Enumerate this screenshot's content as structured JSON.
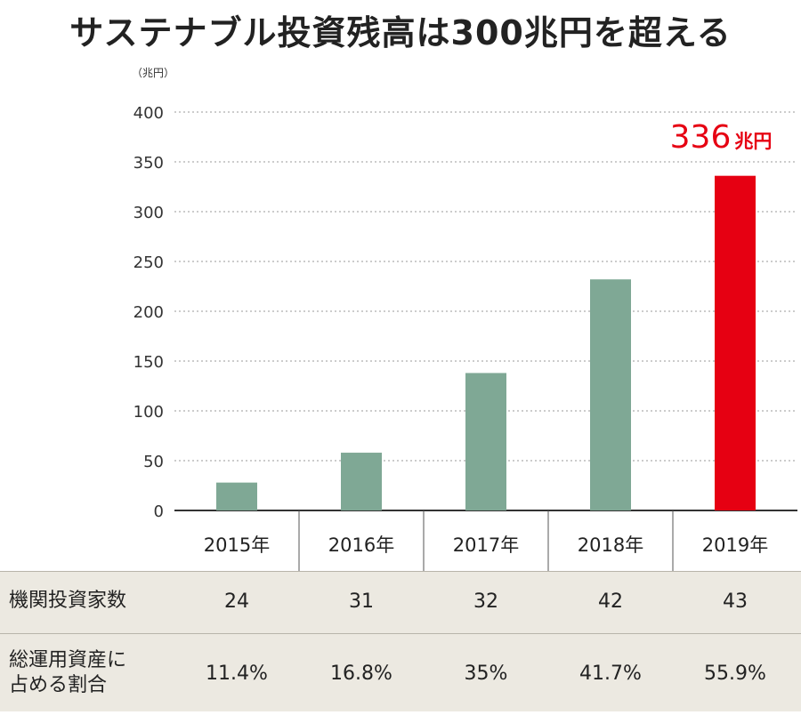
{
  "chart_data": {
    "type": "bar",
    "title": "サステナブル投資残高は300兆円を超える",
    "unit": "（兆円）",
    "categories": [
      "2015年",
      "2016年",
      "2017年",
      "2018年",
      "2019年"
    ],
    "values": [
      28,
      58,
      138,
      232,
      336
    ],
    "ylim": [
      0,
      400
    ],
    "yticks": [
      "400",
      "350",
      "300",
      "250",
      "200",
      "150",
      "100",
      "50",
      "0"
    ],
    "grid": true,
    "highlight": {
      "index": 4,
      "value": "336",
      "unit": "兆円"
    },
    "colors": {
      "bar": "#7fa895",
      "highlight": "#e60012"
    }
  },
  "table": {
    "rows": [
      {
        "header": "機関投資家数",
        "values": [
          "24",
          "31",
          "32",
          "42",
          "43"
        ]
      },
      {
        "header_lines": [
          "総運用資産に",
          "占める割合"
        ],
        "values": [
          "11.4%",
          "16.8%",
          "35%",
          "41.7%",
          "55.9%"
        ]
      }
    ]
  }
}
